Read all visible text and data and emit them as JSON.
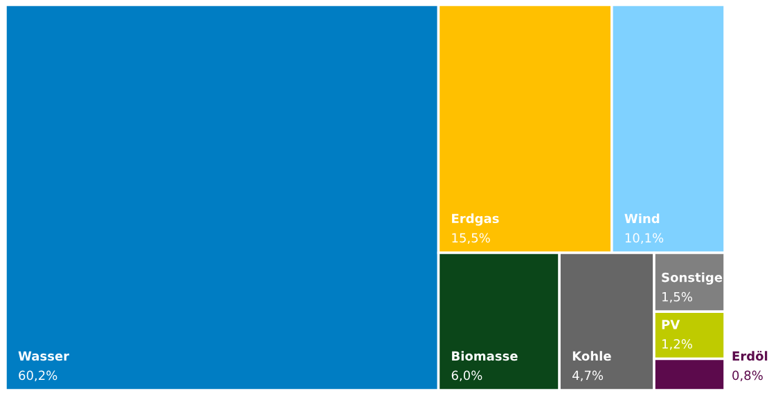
{
  "chart_data": {
    "type": "other",
    "categories": [
      "Wasser",
      "Erdgas",
      "Wind",
      "Biomasse",
      "Kohle",
      "Sonstige",
      "PV",
      "Erdöl"
    ],
    "values": [
      60.2,
      15.5,
      10.1,
      6.0,
      4.7,
      1.5,
      1.2,
      0.8
    ],
    "value_labels": [
      "60,2%",
      "15,5%",
      "10,1%",
      "6,0%",
      "4,7%",
      "1,5%",
      "1,2%",
      "0,8%"
    ],
    "colors": [
      "#007dc3",
      "#ffc000",
      "#7fd1ff",
      "#0b4619",
      "#666666",
      "#808080",
      "#bfcb00",
      "#5c0a4c"
    ]
  }
}
